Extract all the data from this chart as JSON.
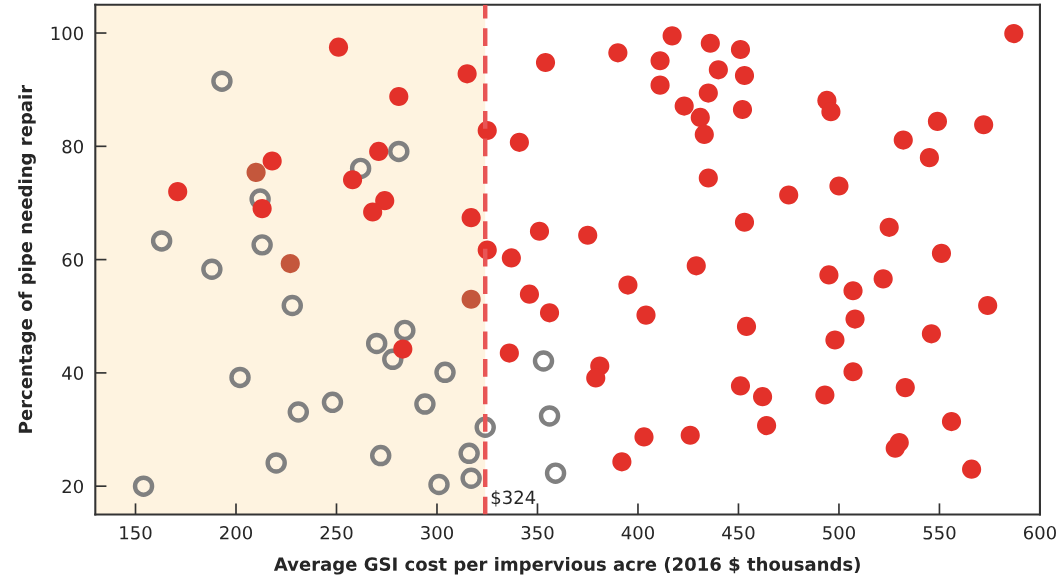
{
  "chart_data": {
    "type": "scatter",
    "xlabel": "Average GSI cost per impervious acre (2016 $ thousands)",
    "ylabel": "Percentage of pipe needing repair",
    "xlim": [
      130,
      600
    ],
    "xticks": [
      150,
      200,
      250,
      300,
      350,
      400,
      450,
      500,
      550,
      600
    ],
    "ylim": [
      15,
      105
    ],
    "yticks": [
      20,
      40,
      60,
      80,
      100
    ],
    "grid": false,
    "legend": false,
    "marker": "circle",
    "bands": [
      {
        "axis": "x",
        "from": 130,
        "to": 324,
        "color": "#fef3e0"
      }
    ],
    "ref_lines": [
      {
        "axis": "x",
        "value": 324,
        "label": "$324",
        "color": "#e85555",
        "line_style": "dashed"
      }
    ],
    "series": [
      {
        "color": "#808080",
        "x": [
          193,
          281,
          262,
          212,
          163,
          213,
          188,
          228,
          284,
          270,
          278,
          202,
          304,
          248,
          294,
          231,
          324,
          272,
          316,
          220,
          154,
          301,
          317,
          353,
          356,
          359
        ],
        "values": [
          91.5,
          79.1,
          76.1,
          70.7,
          63.3,
          62.6,
          58.3,
          51.9,
          47.5,
          45.2,
          42.4,
          39.2,
          40.1,
          34.8,
          34.5,
          33.1,
          30.4,
          25.4,
          25.8,
          24.1,
          20.0,
          20.3,
          21.4,
          42.1,
          32.4,
          22.3
        ]
      },
      {
        "color": "#c4573c",
        "x": [
          210,
          227,
          317
        ],
        "values": [
          75.4,
          59.3,
          53.0
        ]
      },
      {
        "color": "#e3312a",
        "x": [
          251,
          315,
          281,
          325,
          271,
          218,
          258,
          171,
          213,
          274,
          268,
          317,
          325,
          283,
          354,
          390,
          417,
          411,
          411,
          436,
          451,
          440,
          453,
          435,
          423,
          431,
          433,
          452,
          494,
          496,
          549,
          572,
          532,
          545,
          587,
          341,
          435,
          475,
          500,
          453,
          525,
          351,
          375,
          337,
          551,
          429,
          395,
          346,
          356,
          404,
          495,
          507,
          522,
          574,
          454,
          508,
          498,
          546,
          336,
          381,
          379,
          507,
          451,
          462,
          493,
          533,
          464,
          556,
          403,
          426,
          530,
          528,
          392,
          566
        ],
        "values": [
          97.5,
          92.8,
          88.8,
          82.8,
          79.1,
          77.4,
          74.1,
          72.0,
          69.0,
          70.4,
          68.4,
          67.4,
          61.7,
          44.2,
          94.8,
          96.5,
          99.5,
          95.1,
          90.8,
          98.2,
          97.1,
          93.5,
          92.5,
          89.4,
          87.1,
          85.1,
          82.1,
          86.5,
          88.1,
          86.1,
          84.4,
          83.8,
          81.1,
          78.0,
          99.9,
          80.7,
          74.4,
          71.4,
          73.0,
          66.6,
          65.7,
          65.0,
          64.3,
          60.3,
          61.1,
          58.9,
          55.5,
          53.9,
          50.6,
          50.2,
          57.3,
          54.5,
          56.6,
          51.9,
          48.2,
          49.5,
          45.8,
          46.9,
          43.5,
          41.2,
          39.1,
          40.2,
          37.7,
          35.8,
          36.1,
          37.4,
          30.7,
          31.4,
          28.7,
          29.0,
          27.7,
          26.7,
          24.3,
          23.0
        ]
      }
    ]
  }
}
